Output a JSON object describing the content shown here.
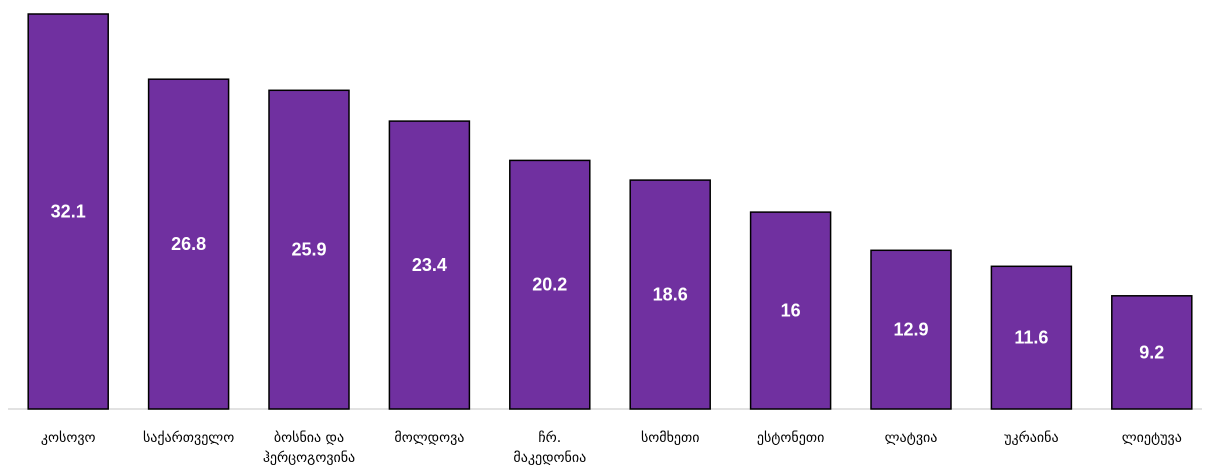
{
  "chart_data": {
    "type": "bar",
    "title": "",
    "xlabel": "",
    "ylabel": "",
    "ylim": [
      0,
      32.1
    ],
    "grid": false,
    "legend": "none",
    "bar_color": "#7030A0",
    "categories": [
      [
        "კოსოვო"
      ],
      [
        "საქართველო"
      ],
      [
        "ბოსნია და",
        "ჰერცოგოვინა"
      ],
      [
        "მოლდოვა"
      ],
      [
        "ჩრ.",
        "მაკედონია"
      ],
      [
        "სომხეთი"
      ],
      [
        "ესტონეთი"
      ],
      [
        "ლატვია"
      ],
      [
        "უკრაინა"
      ],
      [
        "ლიეტუვა"
      ]
    ],
    "values": [
      32.1,
      26.8,
      25.9,
      23.4,
      20.2,
      18.6,
      16,
      12.9,
      11.6,
      9.2
    ]
  }
}
